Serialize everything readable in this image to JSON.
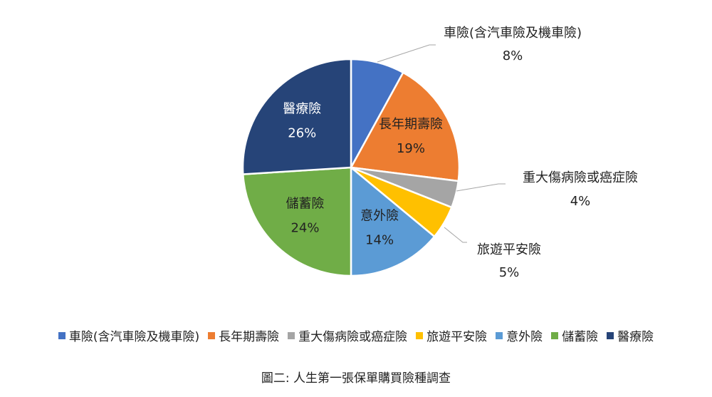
{
  "chart_data": {
    "type": "pie",
    "title": "",
    "slices": [
      {
        "label": "車險(含汽車險及機車險)",
        "value": 8,
        "pct_label": "8%",
        "color": "#4472C4",
        "label_position": "outside"
      },
      {
        "label": "長年期壽險",
        "value": 19,
        "pct_label": "19%",
        "color": "#ED7D31",
        "label_position": "inside"
      },
      {
        "label": "重大傷病險或癌症險",
        "value": 4,
        "pct_label": "4%",
        "color": "#A5A5A5",
        "label_position": "outside"
      },
      {
        "label": "旅遊平安險",
        "value": 5,
        "pct_label": "5%",
        "color": "#FFC000",
        "label_position": "outside"
      },
      {
        "label": "意外險",
        "value": 14,
        "pct_label": "14%",
        "color": "#5B9BD5",
        "label_position": "inside"
      },
      {
        "label": "儲蓄險",
        "value": 24,
        "pct_label": "24%",
        "color": "#70AD47",
        "label_position": "inside"
      },
      {
        "label": "醫療險",
        "value": 26,
        "pct_label": "26%",
        "color": "#264478",
        "label_position": "inside"
      }
    ],
    "legend_position": "bottom"
  },
  "caption": "圖二:  人生第一張保單購買險種調查"
}
